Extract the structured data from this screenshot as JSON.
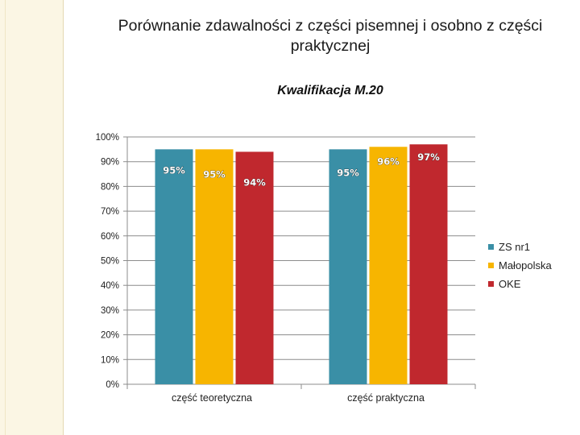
{
  "slide": {
    "title": "Porównanie zdawalności z części pisemnej i osobno z części praktycznej"
  },
  "chart_data": {
    "type": "bar",
    "title": "Kwalifikacja M.20",
    "xlabel": "",
    "ylabel": "",
    "categories": [
      "część teoretyczna",
      "część praktyczna"
    ],
    "series": [
      {
        "name": "ZS nr1",
        "values": [
          95,
          95
        ],
        "labels": [
          "95%",
          "95%"
        ],
        "color": "#3a8fa6"
      },
      {
        "name": "Małopolska",
        "values": [
          95,
          96
        ],
        "labels": [
          "95%",
          "96%"
        ],
        "color": "#f7b500"
      },
      {
        "name": "OKE",
        "values": [
          94,
          97
        ],
        "labels": [
          "94%",
          "97%"
        ],
        "color": "#c0282e"
      }
    ],
    "ylim": [
      0,
      100
    ],
    "yticks": [
      0,
      10,
      20,
      30,
      40,
      50,
      60,
      70,
      80,
      90,
      100
    ],
    "ytick_labels": [
      "0%",
      "10%",
      "20%",
      "30%",
      "40%",
      "50%",
      "60%",
      "70%",
      "80%",
      "90%",
      "100%"
    ],
    "grid": true,
    "legend": "right"
  }
}
